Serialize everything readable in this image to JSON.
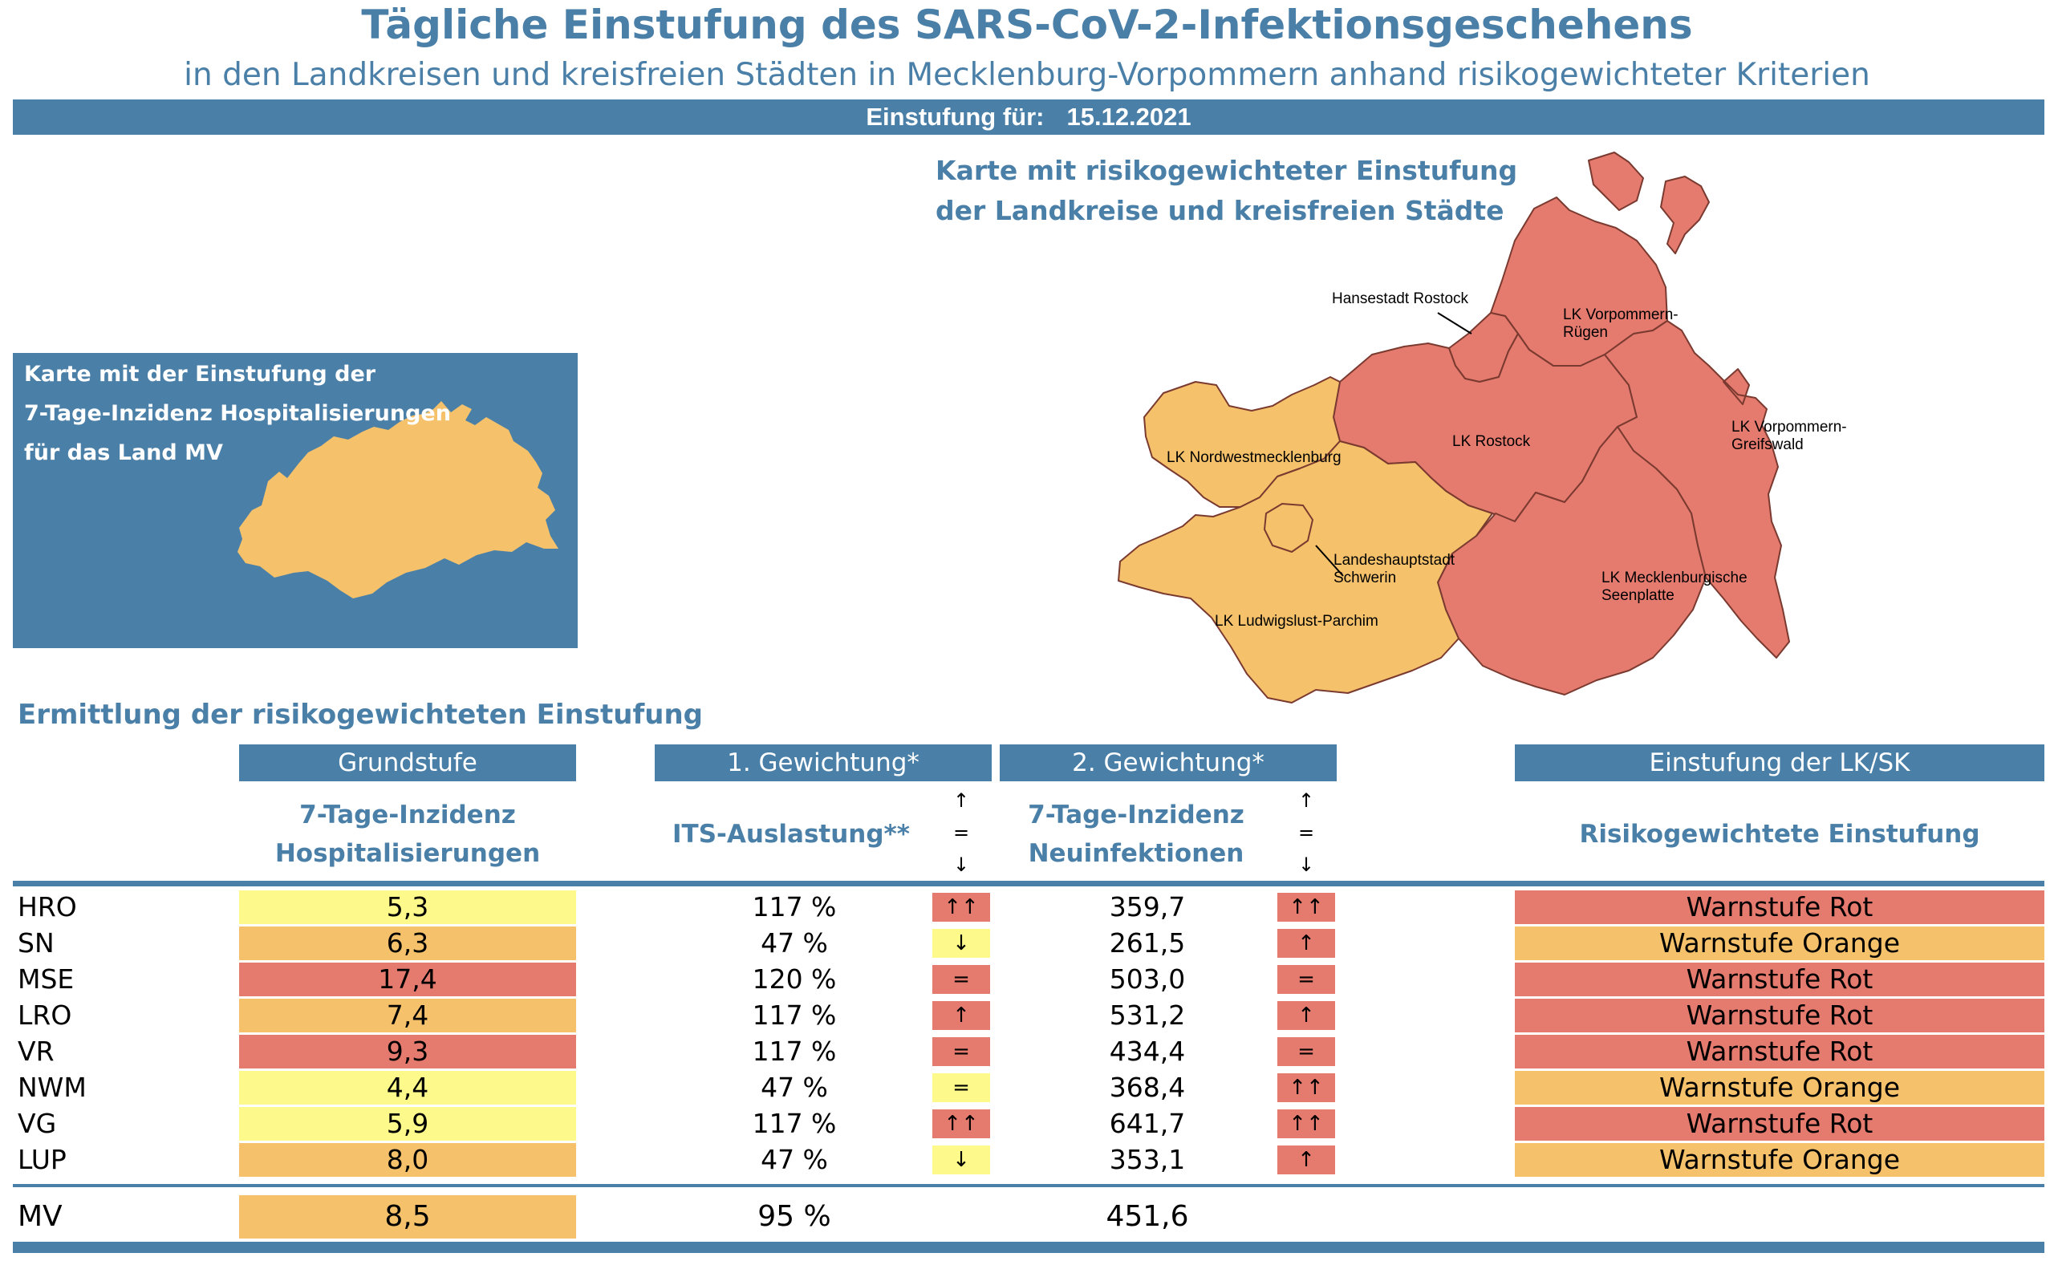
{
  "title": "Tägliche Einstufung des SARS-CoV-2-Infektionsgeschehens",
  "subtitle": "in den Landkreisen und kreisfreien Städten in Mecklenburg-Vorpommern anhand risikogewichteter Kriterien",
  "date_label": "Einstufung für:",
  "date_value": "15.12.2021",
  "map": {
    "heading_line1": "Karte mit risikogewichteter Einstufung",
    "heading_line2": "der Landkreise und kreisfreien Städte",
    "labels": {
      "rostock_city": "Hansestadt Rostock",
      "vr_1": "LK Vorpommern-",
      "vr_2": "Rügen",
      "lro": "LK Rostock",
      "vg_1": "LK Vorpommern-",
      "vg_2": "Greifswald",
      "nwm": "LK Nordwestmecklenburg",
      "sn_1": "Landeshauptstadt",
      "sn_2": "Schwerin",
      "mse_1": "LK Mecklenburgische",
      "mse_2": "Seenplatte",
      "lup": "LK Ludwigslust-Parchim"
    },
    "colors": {
      "red": "#e57a6e",
      "orange": "#f5c26b",
      "border": "#7a3a30"
    }
  },
  "small_map": {
    "line1": "Karte mit der Einstufung der",
    "line2": "7-Tage-Inzidenz Hospitalisierungen",
    "line3": "für das Land MV"
  },
  "section_title": "Ermittlung der risikogewichteten Einstufung",
  "headers": {
    "grundstufe": "Grundstufe",
    "gew1": "1. Gewichtung*",
    "gew2": "2. Gewichtung*",
    "einstufung": "Einstufung der LK/SK",
    "hosp_1": "7-Tage-Inzidenz",
    "hosp_2": "Hospitalisierungen",
    "its": "ITS-Auslastung**",
    "neu_1": "7-Tage-Inzidenz",
    "neu_2": "Neuinfektionen",
    "risk": "Risikogewichtete Einstufung",
    "arrow_up": "↑",
    "arrow_eq": "=",
    "arrow_down": "↓"
  },
  "colors": {
    "accent": "#4a7fa8",
    "yellow": "#fdf98a",
    "orange": "#f5c26b",
    "red": "#e57a6e"
  },
  "rows": [
    {
      "abbr": "HRO",
      "hosp": "5,3",
      "hosp_color": "yellow",
      "its": "117 %",
      "its_trend": "↑↑",
      "its_trend_color": "red",
      "neu": "359,7",
      "neu_trend": "↑↑",
      "neu_trend_color": "red",
      "stufe": "Warnstufe Rot",
      "stufe_color": "red"
    },
    {
      "abbr": "SN",
      "hosp": "6,3",
      "hosp_color": "orange",
      "its": "47 %",
      "its_trend": "↓",
      "its_trend_color": "yellow",
      "neu": "261,5",
      "neu_trend": "↑",
      "neu_trend_color": "red",
      "stufe": "Warnstufe Orange",
      "stufe_color": "orange"
    },
    {
      "abbr": "MSE",
      "hosp": "17,4",
      "hosp_color": "red",
      "its": "120 %",
      "its_trend": "=",
      "its_trend_color": "red",
      "neu": "503,0",
      "neu_trend": "=",
      "neu_trend_color": "red",
      "stufe": "Warnstufe Rot",
      "stufe_color": "red"
    },
    {
      "abbr": "LRO",
      "hosp": "7,4",
      "hosp_color": "orange",
      "its": "117 %",
      "its_trend": "↑",
      "its_trend_color": "red",
      "neu": "531,2",
      "neu_trend": "↑",
      "neu_trend_color": "red",
      "stufe": "Warnstufe Rot",
      "stufe_color": "red"
    },
    {
      "abbr": "VR",
      "hosp": "9,3",
      "hosp_color": "red",
      "its": "117 %",
      "its_trend": "=",
      "its_trend_color": "red",
      "neu": "434,4",
      "neu_trend": "=",
      "neu_trend_color": "red",
      "stufe": "Warnstufe Rot",
      "stufe_color": "red"
    },
    {
      "abbr": "NWM",
      "hosp": "4,4",
      "hosp_color": "yellow",
      "its": "47 %",
      "its_trend": "=",
      "its_trend_color": "yellow",
      "neu": "368,4",
      "neu_trend": "↑↑",
      "neu_trend_color": "red",
      "stufe": "Warnstufe Orange",
      "stufe_color": "orange"
    },
    {
      "abbr": "VG",
      "hosp": "5,9",
      "hosp_color": "yellow",
      "its": "117 %",
      "its_trend": "↑↑",
      "its_trend_color": "red",
      "neu": "641,7",
      "neu_trend": "↑↑",
      "neu_trend_color": "red",
      "stufe": "Warnstufe Rot",
      "stufe_color": "red"
    },
    {
      "abbr": "LUP",
      "hosp": "8,0",
      "hosp_color": "orange",
      "its": "47 %",
      "its_trend": "↓",
      "its_trend_color": "yellow",
      "neu": "353,1",
      "neu_trend": "↑",
      "neu_trend_color": "red",
      "stufe": "Warnstufe Orange",
      "stufe_color": "orange"
    }
  ],
  "total": {
    "abbr": "MV",
    "hosp": "8,5",
    "hosp_color": "orange",
    "its": "95 %",
    "neu": "451,6"
  }
}
